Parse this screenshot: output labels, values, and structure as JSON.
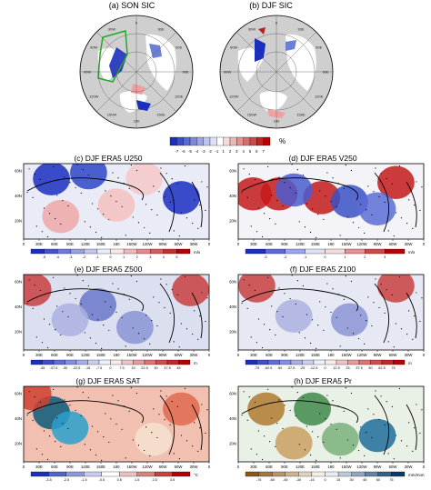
{
  "chart_data": [
    {
      "panel": "a",
      "type": "heatmap",
      "title": "(a) SON SIC",
      "projection": "polar-stereographic",
      "lon_labels": [
        "0",
        "30E",
        "60E",
        "90E",
        "120E",
        "150E",
        "180",
        "150W",
        "120W",
        "90W",
        "60W",
        "30W"
      ]
    },
    {
      "panel": "b",
      "type": "heatmap",
      "title": "(b) DJF SIC",
      "projection": "polar-stereographic",
      "lon_labels": [
        "0",
        "30E",
        "60E",
        "90E",
        "120E",
        "150E",
        "180",
        "150W",
        "120W",
        "90W",
        "60W",
        "30W"
      ]
    },
    {
      "panel": "c",
      "type": "heatmap",
      "title": "(c) DJF ERA5 U250",
      "unit": "m/s",
      "xticks": [
        "0",
        "30E",
        "60E",
        "90E",
        "120E",
        "150E",
        "180",
        "150W",
        "120W",
        "90W",
        "60W",
        "30W",
        "0"
      ],
      "yticks": [
        "20N",
        "40N",
        "60N"
      ],
      "legend_ticks": [
        "-5",
        "-4",
        "-3",
        "-2",
        "-1",
        "0",
        "1",
        "2",
        "3",
        "4",
        "5"
      ]
    },
    {
      "panel": "d",
      "type": "heatmap",
      "title": "(d) DJF ERA5 V250",
      "unit": "m/s",
      "xticks": [
        "0",
        "30E",
        "60E",
        "90E",
        "120E",
        "150E",
        "180",
        "150W",
        "120W",
        "90W",
        "60W",
        "30W",
        "0"
      ],
      "yticks": [
        "20N",
        "40N",
        "60N"
      ],
      "legend_ticks": [
        "-3",
        "-2",
        "-1",
        "0",
        "1",
        "2",
        "3"
      ]
    },
    {
      "panel": "e",
      "type": "heatmap",
      "title": "(e) DJF ERA5 Z500",
      "unit": "m",
      "xticks": [
        "0",
        "30E",
        "60E",
        "90E",
        "120E",
        "150E",
        "180",
        "150W",
        "120W",
        "90W",
        "60W",
        "30W",
        "0"
      ],
      "yticks": [
        "20N",
        "40N",
        "60N"
      ],
      "legend_ticks": [
        "-45",
        "-37.5",
        "-30",
        "-22.5",
        "-15",
        "-7.5",
        "0",
        "7.5",
        "15",
        "22.5",
        "30",
        "37.5",
        "45"
      ]
    },
    {
      "panel": "f",
      "type": "heatmap",
      "title": "(f) DJF ERA5 Z100",
      "unit": "m",
      "xticks": [
        "0",
        "30E",
        "60E",
        "90E",
        "120E",
        "150E",
        "180",
        "150W",
        "120W",
        "90W",
        "60W",
        "30W",
        "0"
      ],
      "yticks": [
        "20N",
        "40N",
        "60N"
      ],
      "legend_ticks": [
        "-75",
        "-62.5",
        "-50",
        "-37.5",
        "-25",
        "-12.5",
        "0",
        "12.5",
        "25",
        "37.5",
        "50",
        "62.5",
        "75"
      ]
    },
    {
      "panel": "g",
      "type": "heatmap",
      "title": "(g) DJF ERA5 SAT",
      "unit": "°C",
      "xticks": [
        "0",
        "30E",
        "60E",
        "90E",
        "120E",
        "150E",
        "180",
        "150W",
        "120W",
        "90W",
        "60W",
        "30W",
        "0"
      ],
      "yticks": [
        "20N",
        "40N",
        "60N"
      ],
      "legend_ticks": [
        "-3.5",
        "-2.5",
        "-1.5",
        "-0.5",
        "0.5",
        "1.5",
        "2.5",
        "3.5"
      ]
    },
    {
      "panel": "h",
      "type": "heatmap",
      "title": "(h) DJF ERA5 Pr",
      "unit": "mm/mon",
      "xticks": [
        "0",
        "30E",
        "60E",
        "90E",
        "120E",
        "150E",
        "180",
        "150W",
        "120W",
        "90W",
        "60W",
        "30W",
        "0"
      ],
      "yticks": [
        "20N",
        "40N",
        "60N"
      ],
      "legend_ticks": [
        "-75",
        "-60",
        "-45",
        "-30",
        "-15",
        "0",
        "15",
        "30",
        "45",
        "60",
        "75"
      ]
    }
  ],
  "sic_legend": {
    "ticks": [
      "-7",
      "-6",
      "-5",
      "-4",
      "-3",
      "-2",
      "-1",
      "1",
      "2",
      "3",
      "4",
      "5",
      "6",
      "7"
    ],
    "unit": "%"
  }
}
